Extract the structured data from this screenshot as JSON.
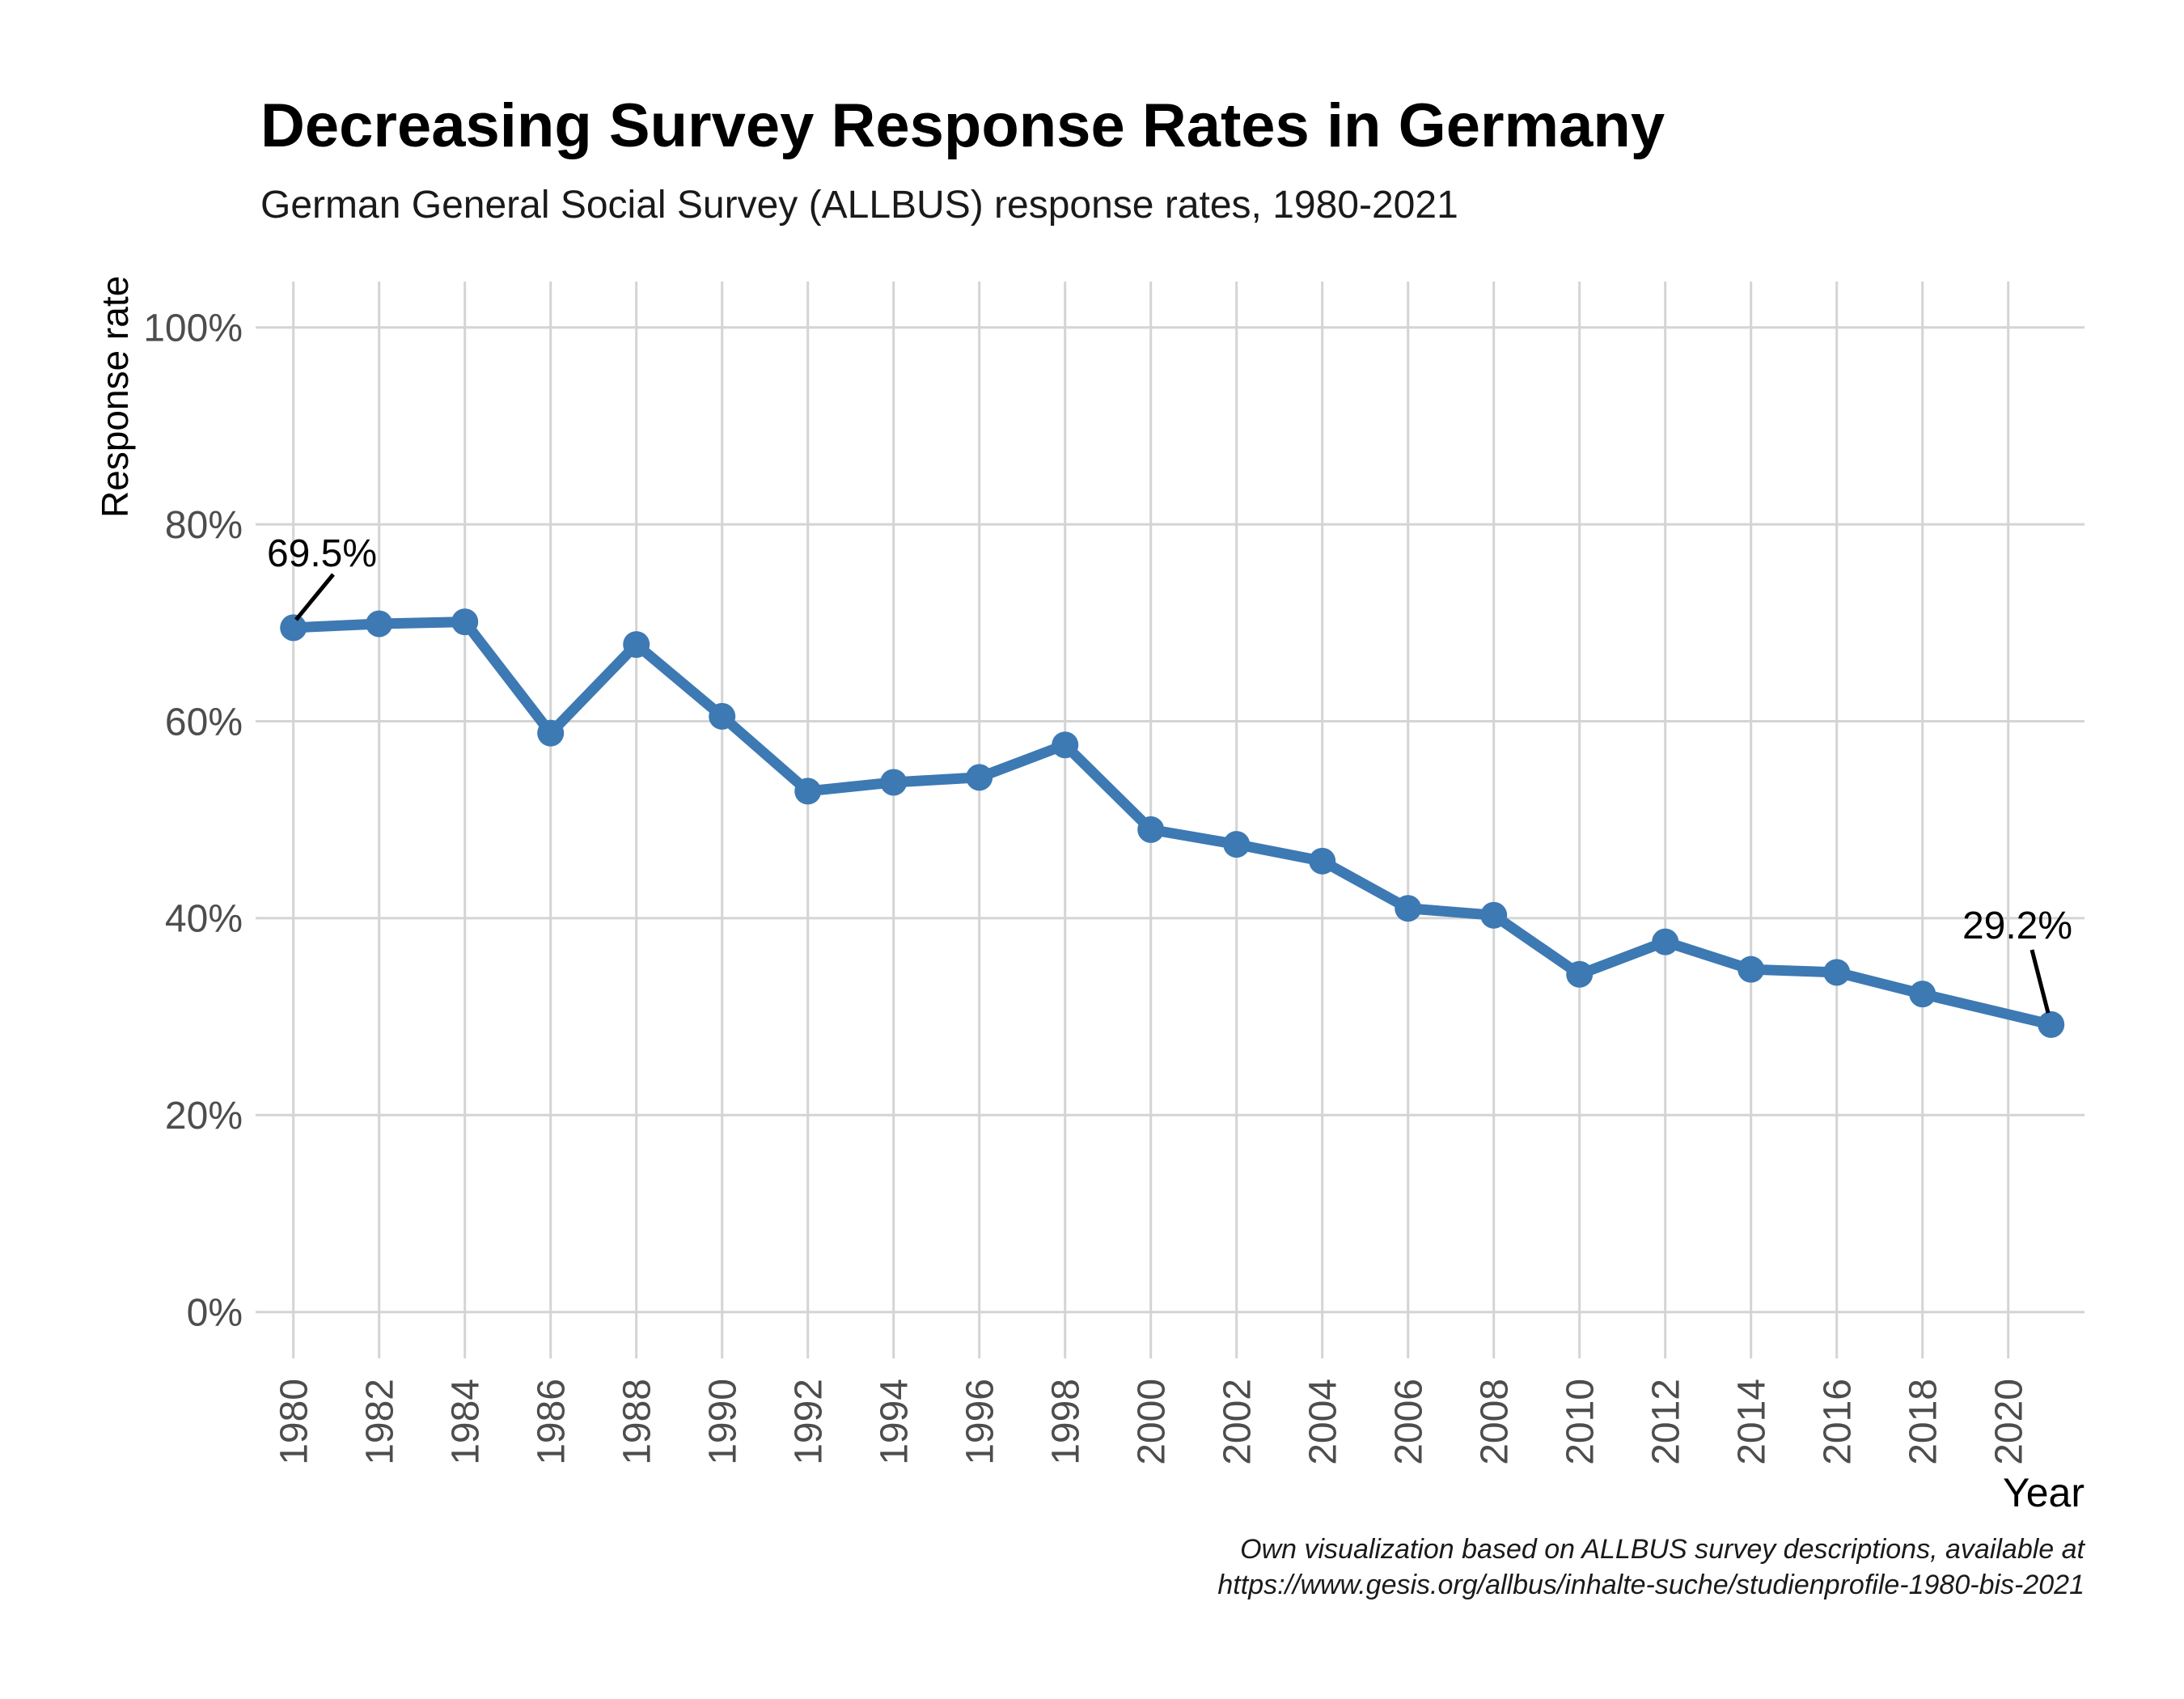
{
  "chart": {
    "title": "Decreasing Survey Response Rates in Germany",
    "subtitle": "German General Social Survey (ALLBUS) response rates, 1980-2021",
    "caption_line1": "Own visualization based on ALLBUS survey descriptions, available at",
    "caption_line2": "https://www.gesis.org/allbus/inhalte-suche/studienprofile-1980-bis-2021"
  },
  "chart_data": {
    "type": "line",
    "title": "Decreasing Survey Response Rates in Germany",
    "subtitle": "German General Social Survey (ALLBUS) response rates, 1980-2021",
    "xlabel": "Year",
    "ylabel": "Response rate",
    "x": [
      1980,
      1982,
      1984,
      1986,
      1988,
      1990,
      1992,
      1994,
      1996,
      1998,
      2000,
      2002,
      2004,
      2006,
      2008,
      2010,
      2012,
      2014,
      2016,
      2018,
      2021
    ],
    "values": [
      69.5,
      69.9,
      70.1,
      58.8,
      67.8,
      60.5,
      52.9,
      53.8,
      54.3,
      57.6,
      49.0,
      47.5,
      45.8,
      41.0,
      40.3,
      34.3,
      37.6,
      34.8,
      34.5,
      32.3,
      29.2
    ],
    "x_ticks": [
      1980,
      1982,
      1984,
      1986,
      1988,
      1990,
      1992,
      1994,
      1996,
      1998,
      2000,
      2002,
      2004,
      2006,
      2008,
      2010,
      2012,
      2014,
      2016,
      2018,
      2020
    ],
    "y_ticks": [
      0,
      20,
      40,
      60,
      80,
      100
    ],
    "y_tick_labels": [
      "0%",
      "20%",
      "40%",
      "60%",
      "80%",
      "100%"
    ],
    "xlim": [
      1980,
      2021
    ],
    "ylim": [
      0,
      100
    ],
    "grid": true,
    "legend_position": "none",
    "line_color": "#3d79b3",
    "grid_color": "#d4d4d4",
    "tick_label_color": "#4d4d4d",
    "axis_title_color": "#000000",
    "annotation_color": "#000000",
    "annotations": [
      {
        "text": "69.5%",
        "year": 1980,
        "value": 69.5
      },
      {
        "text": "29.2%",
        "year": 2021,
        "value": 29.2
      }
    ]
  }
}
